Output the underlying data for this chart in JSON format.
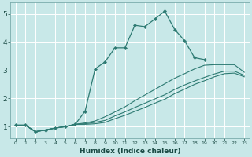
{
  "xlabel": "Humidex (Indice chaleur)",
  "bg_color": "#c8e8e8",
  "grid_color": "#ffffff",
  "line_color": "#2d7a72",
  "xlim": [
    -0.5,
    23.5
  ],
  "ylim": [
    0.6,
    5.4
  ],
  "series": [
    {
      "x": [
        0,
        1,
        2,
        3,
        4,
        5,
        6,
        7,
        8,
        9,
        10,
        11,
        12,
        13,
        14,
        15,
        16,
        17,
        18,
        19
      ],
      "y": [
        1.05,
        1.05,
        0.82,
        0.88,
        0.95,
        1.0,
        1.08,
        1.55,
        3.05,
        3.3,
        3.8,
        3.8,
        4.6,
        4.55,
        4.82,
        5.1,
        4.45,
        4.05,
        3.45,
        3.38
      ],
      "marker": true
    },
    {
      "x": [
        0,
        1,
        2,
        3,
        4,
        5,
        6,
        7,
        8,
        9,
        10,
        11,
        12,
        13,
        14,
        15,
        16,
        17,
        18,
        19,
        20,
        21,
        22,
        23
      ],
      "y": [
        1.05,
        1.05,
        0.82,
        0.88,
        0.95,
        1.0,
        1.08,
        1.13,
        1.2,
        1.35,
        1.52,
        1.7,
        1.92,
        2.12,
        2.32,
        2.52,
        2.72,
        2.88,
        3.05,
        3.18,
        3.2,
        3.2,
        3.2,
        2.93
      ],
      "marker": false
    },
    {
      "x": [
        0,
        1,
        2,
        3,
        4,
        5,
        6,
        7,
        8,
        9,
        10,
        11,
        12,
        13,
        14,
        15,
        16,
        17,
        18,
        19,
        20,
        21,
        22,
        23
      ],
      "y": [
        1.05,
        1.05,
        0.82,
        0.88,
        0.95,
        1.0,
        1.08,
        1.1,
        1.15,
        1.22,
        1.38,
        1.52,
        1.68,
        1.83,
        1.98,
        2.13,
        2.32,
        2.48,
        2.62,
        2.75,
        2.87,
        2.97,
        2.97,
        2.82
      ],
      "marker": false
    },
    {
      "x": [
        0,
        1,
        2,
        3,
        4,
        5,
        6,
        7,
        8,
        9,
        10,
        11,
        12,
        13,
        14,
        15,
        16,
        17,
        18,
        19,
        20,
        21,
        22,
        23
      ],
      "y": [
        1.05,
        1.05,
        0.82,
        0.88,
        0.95,
        1.0,
        1.08,
        1.08,
        1.1,
        1.15,
        1.28,
        1.4,
        1.54,
        1.68,
        1.83,
        1.97,
        2.17,
        2.33,
        2.5,
        2.63,
        2.77,
        2.88,
        2.9,
        2.77
      ],
      "marker": false
    }
  ],
  "yticks": [
    1,
    2,
    3,
    4,
    5
  ],
  "xticks": [
    0,
    1,
    2,
    3,
    4,
    5,
    6,
    7,
    8,
    9,
    10,
    11,
    12,
    13,
    14,
    15,
    16,
    17,
    18,
    19,
    20,
    21,
    22,
    23
  ]
}
